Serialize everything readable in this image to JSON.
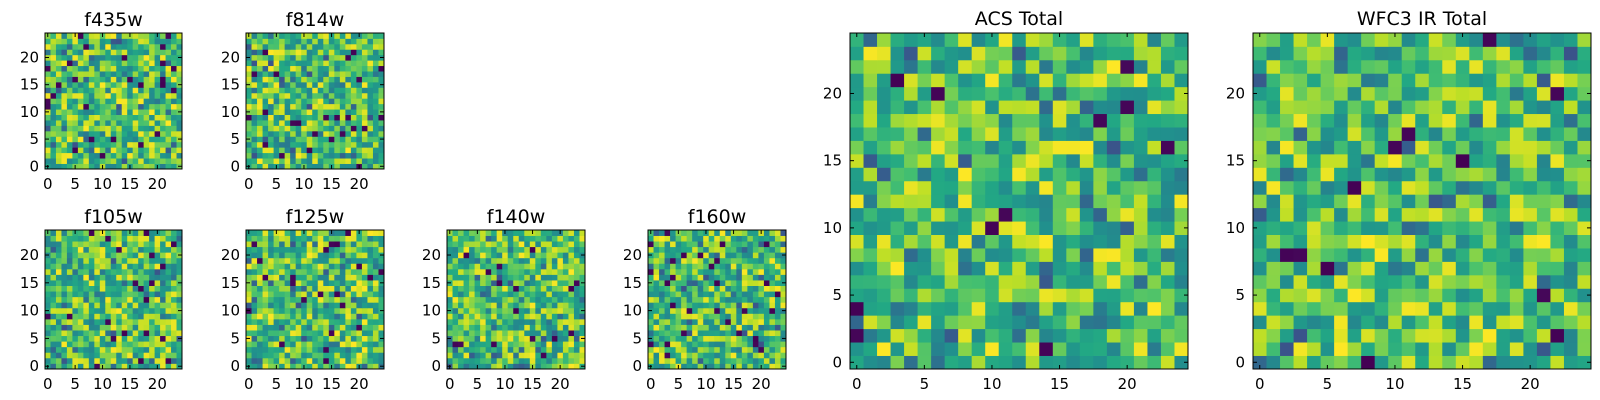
{
  "chart_data": [
    {
      "type": "heatmap",
      "title": "f435w",
      "grid": [
        25,
        25
      ],
      "xticks": [
        0,
        5,
        10,
        15,
        20
      ],
      "yticks": [
        0,
        5,
        10,
        15,
        20
      ],
      "xlim": [
        0,
        24
      ],
      "ylim": [
        0,
        24
      ],
      "colormap": "viridis",
      "seed": 11
    },
    {
      "type": "heatmap",
      "title": "f814w",
      "grid": [
        25,
        25
      ],
      "xticks": [
        0,
        5,
        10,
        15,
        20
      ],
      "yticks": [
        0,
        5,
        10,
        15,
        20
      ],
      "xlim": [
        0,
        24
      ],
      "ylim": [
        0,
        24
      ],
      "colormap": "viridis",
      "seed": 23
    },
    {
      "type": "heatmap",
      "title": "f105w",
      "grid": [
        25,
        25
      ],
      "xticks": [
        0,
        5,
        10,
        15,
        20
      ],
      "yticks": [
        0,
        5,
        10,
        15,
        20
      ],
      "xlim": [
        0,
        24
      ],
      "ylim": [
        0,
        24
      ],
      "colormap": "viridis",
      "seed": 37
    },
    {
      "type": "heatmap",
      "title": "f125w",
      "grid": [
        25,
        25
      ],
      "xticks": [
        0,
        5,
        10,
        15,
        20
      ],
      "yticks": [
        0,
        5,
        10,
        15,
        20
      ],
      "xlim": [
        0,
        24
      ],
      "ylim": [
        0,
        24
      ],
      "colormap": "viridis",
      "seed": 41
    },
    {
      "type": "heatmap",
      "title": "f140w",
      "grid": [
        25,
        25
      ],
      "xticks": [
        0,
        5,
        10,
        15,
        20
      ],
      "yticks": [
        0,
        5,
        10,
        15,
        20
      ],
      "xlim": [
        0,
        24
      ],
      "ylim": [
        0,
        24
      ],
      "colormap": "viridis",
      "seed": 53
    },
    {
      "type": "heatmap",
      "title": "f160w",
      "grid": [
        25,
        25
      ],
      "xticks": [
        0,
        5,
        10,
        15,
        20
      ],
      "yticks": [
        0,
        5,
        10,
        15,
        20
      ],
      "xlim": [
        0,
        24
      ],
      "ylim": [
        0,
        24
      ],
      "colormap": "viridis",
      "seed": 67
    },
    {
      "type": "heatmap",
      "title": "ACS Total",
      "grid": [
        25,
        25
      ],
      "xticks": [
        0,
        5,
        10,
        15,
        20
      ],
      "yticks": [
        0,
        5,
        10,
        15,
        20
      ],
      "xlim": [
        0,
        24
      ],
      "ylim": [
        0,
        24
      ],
      "colormap": "viridis",
      "seed": 79
    },
    {
      "type": "heatmap",
      "title": "WFC3 IR Total",
      "grid": [
        25,
        25
      ],
      "xticks": [
        0,
        5,
        10,
        15,
        20
      ],
      "yticks": [
        0,
        5,
        10,
        15,
        20
      ],
      "xlim": [
        0,
        24
      ],
      "ylim": [
        0,
        24
      ],
      "colormap": "viridis",
      "seed": 97
    }
  ]
}
